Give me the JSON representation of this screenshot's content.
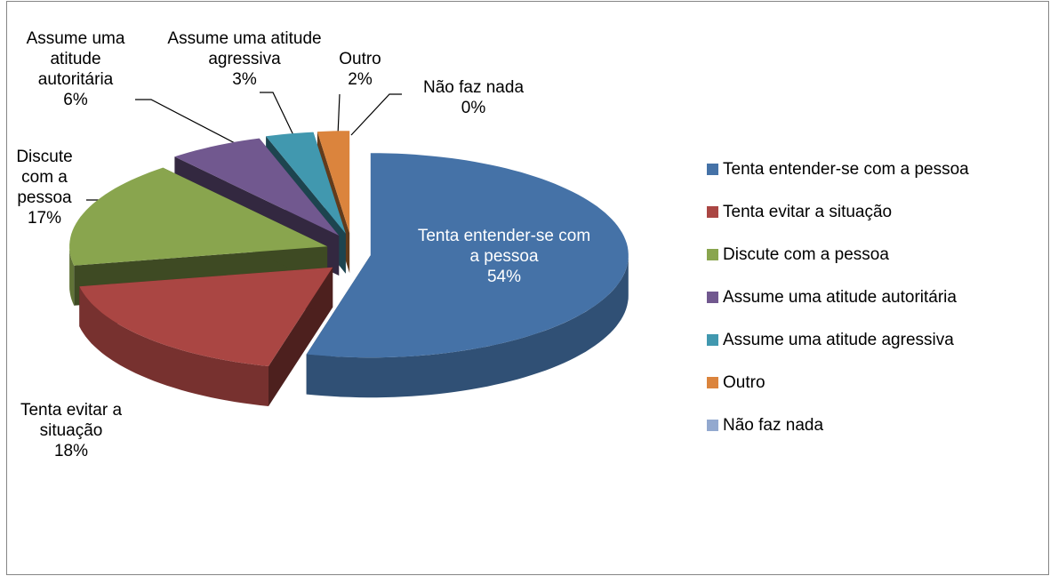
{
  "chart_data": {
    "type": "pie3d",
    "categories": [
      "Tenta entender-se com a pessoa",
      "Tenta evitar a situação",
      "Discute com a pessoa",
      "Assume uma atitude autoritária",
      "Assume uma atitude agressiva",
      "Outro",
      "Não faz nada"
    ],
    "values": [
      54,
      18,
      17,
      6,
      3,
      2,
      0
    ],
    "value_labels": [
      "54%",
      "18%",
      "17%",
      "6%",
      "3%",
      "2%",
      "0%"
    ],
    "colors": [
      "#4572a7",
      "#aa4643",
      "#89a54e",
      "#71588f",
      "#4198af",
      "#db843d",
      "#93a9cf"
    ],
    "legend": "right"
  }
}
